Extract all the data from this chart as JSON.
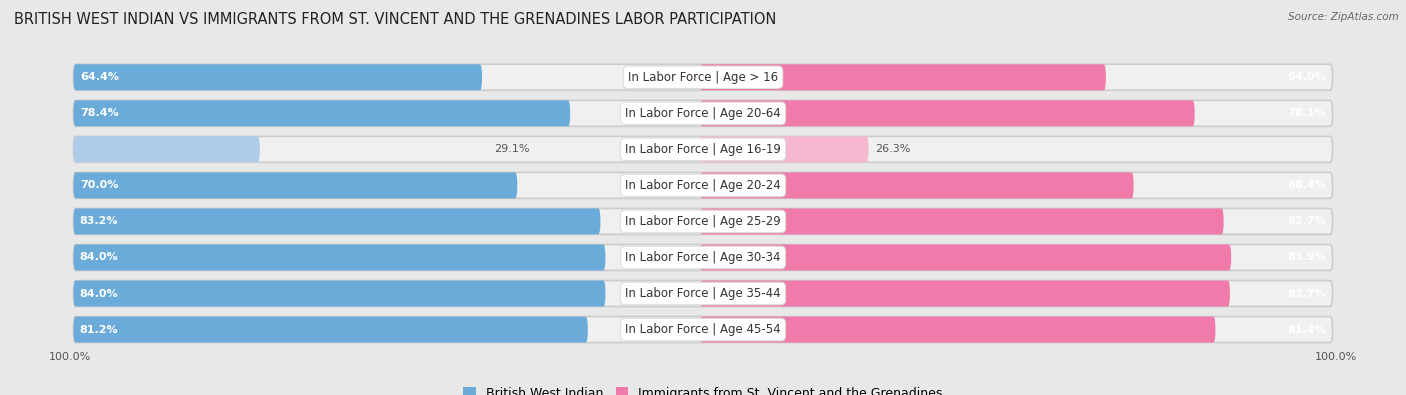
{
  "title": "BRITISH WEST INDIAN VS IMMIGRANTS FROM ST. VINCENT AND THE GRENADINES LABOR PARTICIPATION",
  "source": "Source: ZipAtlas.com",
  "categories": [
    "In Labor Force | Age > 16",
    "In Labor Force | Age 20-64",
    "In Labor Force | Age 16-19",
    "In Labor Force | Age 20-24",
    "In Labor Force | Age 25-29",
    "In Labor Force | Age 30-34",
    "In Labor Force | Age 35-44",
    "In Labor Force | Age 45-54"
  ],
  "left_values": [
    64.4,
    78.4,
    29.1,
    70.0,
    83.2,
    84.0,
    84.0,
    81.2
  ],
  "right_values": [
    64.0,
    78.1,
    26.3,
    68.4,
    82.7,
    83.9,
    83.7,
    81.4
  ],
  "left_color": "#6aabda",
  "right_color": "#f07aaa",
  "left_color_light": "#aecce8",
  "right_color_light": "#f5b8d0",
  "left_label": "British West Indian",
  "right_label": "Immigrants from St. Vincent and the Grenadines",
  "bg_color": "#e8e8e8",
  "row_bg_light": "#f5f5f5",
  "row_bg_dark": "#e0e0e0",
  "max_value": 100.0,
  "title_fontsize": 10.5,
  "label_fontsize": 8.5,
  "value_fontsize": 8.0,
  "axis_label_fontsize": 8,
  "legend_fontsize": 9
}
